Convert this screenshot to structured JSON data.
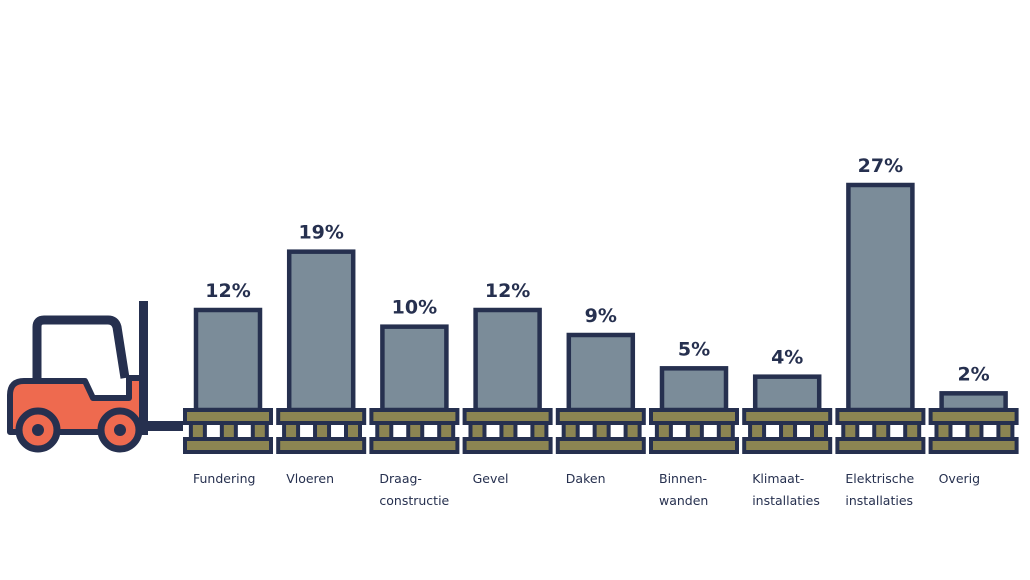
{
  "chart_data": {
    "type": "bar",
    "categories": [
      [
        "Fundering"
      ],
      [
        "Vloeren"
      ],
      [
        "Draag-",
        "constructie"
      ],
      [
        "Gevel"
      ],
      [
        "Daken"
      ],
      [
        "Binnen-",
        "wanden"
      ],
      [
        "Klimaat-",
        "installaties"
      ],
      [
        "Elektrische",
        "installaties"
      ],
      [
        "Overig"
      ]
    ],
    "values": [
      12,
      19,
      10,
      12,
      9,
      5,
      4,
      27,
      2
    ],
    "data_labels": [
      "12%",
      "19%",
      "10%",
      "12%",
      "9%",
      "5%",
      "4%",
      "27%",
      "2%"
    ],
    "unit": "%",
    "title": "",
    "xlabel": "",
    "ylabel": "",
    "ylim": [
      0,
      27
    ],
    "grid": false,
    "legend": "none"
  },
  "colors": {
    "bar_fill": "#7b8c99",
    "outline": "#26304f",
    "pallet_fill": "#8c8552",
    "forklift_body": "#ee6a4f",
    "text": "#26304f"
  },
  "icons": {
    "forklift": "forklift-icon",
    "pallet": "pallet-icon"
  }
}
